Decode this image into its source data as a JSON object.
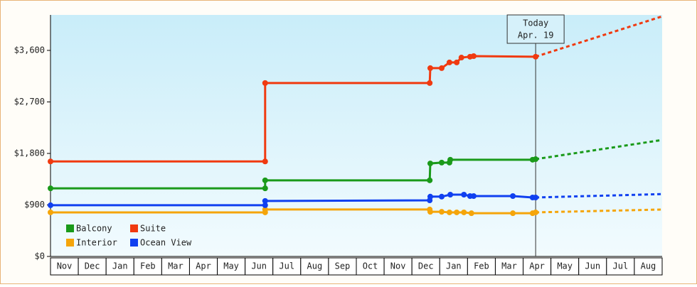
{
  "chart_data": {
    "type": "line",
    "categories": [
      "Nov",
      "Dec",
      "Jan",
      "Feb",
      "Mar",
      "Apr",
      "May",
      "Jun",
      "Jul",
      "Aug",
      "Sep",
      "Oct",
      "Nov",
      "Dec",
      "Jan",
      "Feb",
      "Mar",
      "Apr",
      "May",
      "Jun",
      "Jul",
      "Aug"
    ],
    "xlim": [
      0,
      22
    ],
    "ylim": [
      0,
      4220
    ],
    "yticks": [
      {
        "value": 0,
        "label": "$0"
      },
      {
        "value": 900,
        "label": "$900"
      },
      {
        "value": 1800,
        "label": "$1,800"
      },
      {
        "value": 2700,
        "label": "$2,700"
      },
      {
        "value": 3600,
        "label": "$3,600"
      }
    ],
    "grid": false,
    "legend_position": "lower-left",
    "annotation": {
      "lines": [
        "Today",
        "Apr. 19"
      ],
      "x": 17.45
    },
    "series": [
      {
        "name": "Balcony",
        "color": "#1a9a1a",
        "x": [
          0,
          7.72,
          7.72,
          13.64,
          13.66,
          14.07,
          14.35,
          14.38,
          17.34,
          17.45
        ],
        "values": [
          1190,
          1190,
          1330,
          1330,
          1625,
          1640,
          1640,
          1690,
          1690,
          1700
        ],
        "projection": {
          "x": [
            17.45,
            22
          ],
          "values": [
            1700,
            2035
          ]
        }
      },
      {
        "name": "Suite",
        "color": "#f03a10",
        "x": [
          0,
          7.72,
          7.72,
          13.64,
          13.66,
          14.07,
          14.35,
          14.61,
          14.78,
          15.09,
          15.22,
          17.45
        ],
        "values": [
          1660,
          1660,
          3030,
          3030,
          3290,
          3290,
          3390,
          3390,
          3475,
          3490,
          3500,
          3490
        ],
        "projection": {
          "x": [
            17.45,
            22
          ],
          "values": [
            3490,
            4195
          ]
        }
      },
      {
        "name": "Interior",
        "color": "#f5a50a",
        "x": [
          0,
          7.72,
          7.72,
          13.64,
          13.66,
          14.07,
          14.35,
          14.61,
          14.87,
          15.14,
          16.63,
          17.34,
          17.45
        ],
        "values": [
          770,
          770,
          820,
          820,
          780,
          780,
          770,
          770,
          770,
          755,
          755,
          755,
          770
        ],
        "projection": {
          "x": [
            17.45,
            22
          ],
          "values": [
            770,
            820
          ]
        }
      },
      {
        "name": "Ocean View",
        "color": "#1040f0",
        "x": [
          0,
          7.72,
          7.72,
          13.64,
          13.66,
          14.07,
          14.38,
          14.87,
          15.09,
          15.22,
          16.63,
          17.34,
          17.45
        ],
        "values": [
          895,
          895,
          970,
          980,
          1045,
          1045,
          1080,
          1080,
          1055,
          1055,
          1055,
          1030,
          1030
        ],
        "projection": {
          "x": [
            17.45,
            22
          ],
          "values": [
            1030,
            1090
          ]
        }
      }
    ]
  }
}
